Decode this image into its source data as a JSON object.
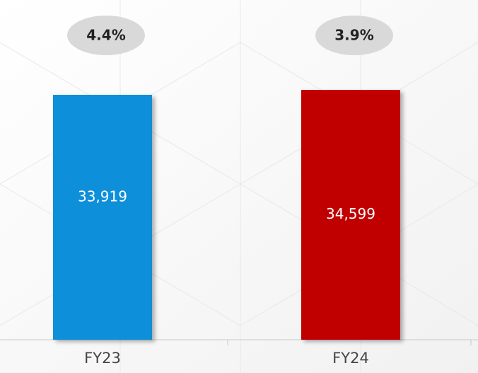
{
  "chart_data": {
    "type": "bar",
    "categories": [
      "FY23",
      "FY24"
    ],
    "values": [
      33919,
      34599
    ],
    "value_labels": [
      "33,919",
      "34,599"
    ],
    "colors": [
      "#0a8fd9",
      "#c00000"
    ],
    "annotations": [
      "4.4%",
      "3.9%"
    ],
    "ylim": [
      0,
      35000
    ]
  }
}
